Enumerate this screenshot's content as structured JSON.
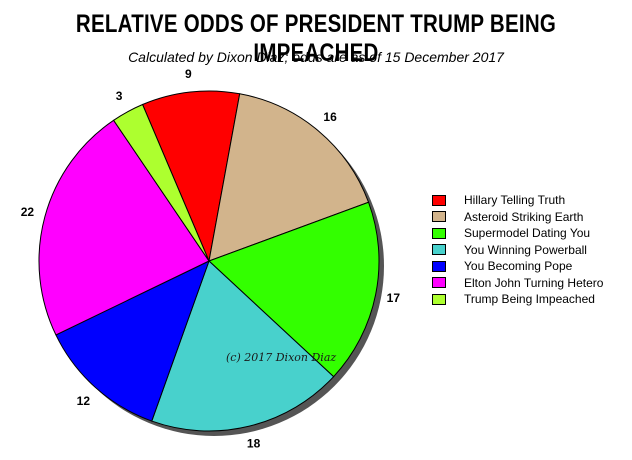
{
  "chart_data": {
    "type": "pie",
    "title": "RELATIVE ODDS OF PRESIDENT TRUMP BEING IMPEACHED",
    "subtitle": "Calculated by Dixon Diaz; odds are as of 15 December 2017",
    "watermark": "(c) 2017 Dixon Diaz",
    "legend_position": "right",
    "slices": [
      {
        "label": "Hillary Telling Truth",
        "value": 9,
        "color": "#ff0000"
      },
      {
        "label": "Asteroid Striking Earth",
        "value": 16,
        "color": "#d2b48c"
      },
      {
        "label": "Supermodel Dating You",
        "value": 17,
        "color": "#33ff00"
      },
      {
        "label": "You Winning Powerball",
        "value": 18,
        "color": "#48d1cc"
      },
      {
        "label": "You Becoming Pope",
        "value": 12,
        "color": "#0000ff"
      },
      {
        "label": "Elton John Turning Hetero",
        "value": 22,
        "color": "#ff00ff"
      },
      {
        "label": "Trump Being Impeached",
        "value": 3,
        "color": "#adff2f"
      }
    ]
  }
}
